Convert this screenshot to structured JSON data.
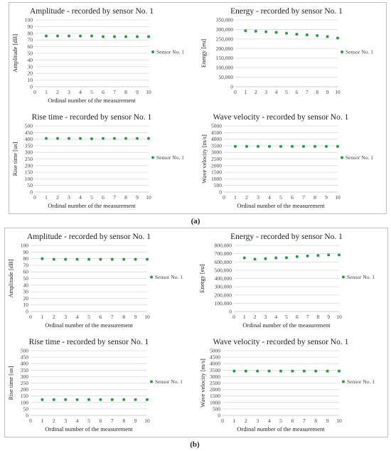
{
  "labels": {
    "a": "(a)",
    "b": "(b)"
  },
  "colors": {
    "series": "#21a038",
    "grid": "#d9d9d9",
    "axis": "#bfbfbf",
    "text": "#404040"
  },
  "chart_data": [
    {
      "panel": "a",
      "type": "scatter",
      "title": "Amplitude - recorded by sensor No. 1",
      "xlabel": "Ordinal number of the measurement",
      "ylabel": "Amplitude [dB]",
      "xlim": [
        0,
        10
      ],
      "ylim": [
        0,
        100
      ],
      "ystep": 10,
      "series": [
        {
          "name": "Sensor No. 1",
          "x": [
            1,
            2,
            3,
            4,
            5,
            6,
            7,
            8,
            9,
            10
          ],
          "y": [
            76,
            76,
            76,
            76,
            76,
            75,
            75,
            75,
            75,
            75
          ]
        }
      ],
      "grid": true,
      "legend": "right"
    },
    {
      "panel": "a",
      "type": "scatter",
      "title": "Energy - recorded by sensor No. 1",
      "xlabel": "",
      "ylabel": "Energy [eu]",
      "xlim": [
        0,
        10
      ],
      "ylim": [
        0,
        350000
      ],
      "ystep": 50000,
      "thousands": true,
      "series": [
        {
          "name": "Sensor No. 1",
          "x": [
            1,
            2,
            3,
            4,
            5,
            6,
            7,
            8,
            9,
            10
          ],
          "y": [
            293000,
            291000,
            288000,
            285000,
            280000,
            275000,
            272000,
            268000,
            263000,
            255000
          ]
        }
      ],
      "grid": true,
      "legend": "right"
    },
    {
      "panel": "a",
      "type": "scatter",
      "title": "Rise time - recorded by sensor No. 1",
      "xlabel": "Ordinal number of the measurement",
      "ylabel": "Rise time [us]",
      "xlim": [
        0,
        10
      ],
      "ylim": [
        0,
        500
      ],
      "ystep": 50,
      "series": [
        {
          "name": "Sensor No. 1",
          "x": [
            1,
            2,
            3,
            4,
            5,
            6,
            7,
            8,
            9,
            10
          ],
          "y": [
            405,
            405,
            405,
            405,
            403,
            405,
            405,
            405,
            405,
            405
          ]
        }
      ],
      "grid": true,
      "legend": "right"
    },
    {
      "panel": "a",
      "type": "scatter",
      "title": "Wave velocity - recorded by sensor No. 1",
      "xlabel": "Ordinal number of the measurement",
      "ylabel": "Wave velocity [m/s]",
      "xlim": [
        0,
        10
      ],
      "ylim": [
        0,
        5000
      ],
      "ystep": 500,
      "series": [
        {
          "name": "Sensor No. 1",
          "x": [
            1,
            2,
            3,
            4,
            5,
            6,
            7,
            8,
            9,
            10
          ],
          "y": [
            3450,
            3450,
            3450,
            3450,
            3450,
            3450,
            3450,
            3450,
            3450,
            3450
          ]
        }
      ],
      "grid": true,
      "legend": "right"
    },
    {
      "panel": "b",
      "type": "scatter",
      "title": "Amplitude - recorded by sensor No. 1",
      "xlabel": "Ordinal number of the measurement",
      "ylabel": "Amplitude [dB]",
      "xlim": [
        0,
        10
      ],
      "ylim": [
        0,
        100
      ],
      "ystep": 10,
      "series": [
        {
          "name": "Sensor No. 1",
          "x": [
            1,
            2,
            3,
            4,
            5,
            6,
            7,
            8,
            9,
            10
          ],
          "y": [
            80,
            79,
            79,
            79,
            79,
            79,
            79,
            79,
            79,
            79
          ]
        }
      ],
      "grid": true,
      "legend": "right"
    },
    {
      "panel": "b",
      "type": "scatter",
      "title": "Energy - recorded by sensor No. 1",
      "xlabel": "Ordinal number of the measurement",
      "ylabel": "Energy [eu]",
      "xlim": [
        0,
        10
      ],
      "ylim": [
        0,
        800000
      ],
      "ystep": 100000,
      "thousands": true,
      "series": [
        {
          "name": "Sensor No. 1",
          "x": [
            1,
            2,
            3,
            4,
            5,
            6,
            7,
            8,
            9,
            10
          ],
          "y": [
            650000,
            633000,
            640000,
            650000,
            652000,
            665000,
            672000,
            678000,
            685000,
            685000
          ]
        }
      ],
      "grid": true,
      "legend": "right"
    },
    {
      "panel": "b",
      "type": "scatter",
      "title": "Rise time - recorded by sensor No. 1",
      "xlabel": "Ordinal number of the measurement",
      "ylabel": "Rise time [us]",
      "xlim": [
        0,
        10
      ],
      "ylim": [
        0,
        500
      ],
      "ystep": 50,
      "series": [
        {
          "name": "Sensor No. 1",
          "x": [
            1,
            2,
            3,
            4,
            5,
            6,
            7,
            8,
            9,
            10
          ],
          "y": [
            122,
            122,
            122,
            122,
            122,
            122,
            122,
            122,
            122,
            122
          ]
        }
      ],
      "grid": true,
      "legend": "right"
    },
    {
      "panel": "b",
      "type": "scatter",
      "title": "Wave velocity - recorded by sensor No. 1",
      "xlabel": "Ordinal number of the measurement",
      "ylabel": "Wave velocity [m/s]",
      "xlim": [
        0,
        10
      ],
      "ylim": [
        0,
        5000
      ],
      "ystep": 500,
      "series": [
        {
          "name": "Sensor No. 1",
          "x": [
            1,
            2,
            3,
            4,
            5,
            6,
            7,
            8,
            9,
            10
          ],
          "y": [
            3430,
            3430,
            3430,
            3430,
            3430,
            3430,
            3430,
            3430,
            3430,
            3430
          ]
        }
      ],
      "grid": true,
      "legend": "right"
    }
  ]
}
